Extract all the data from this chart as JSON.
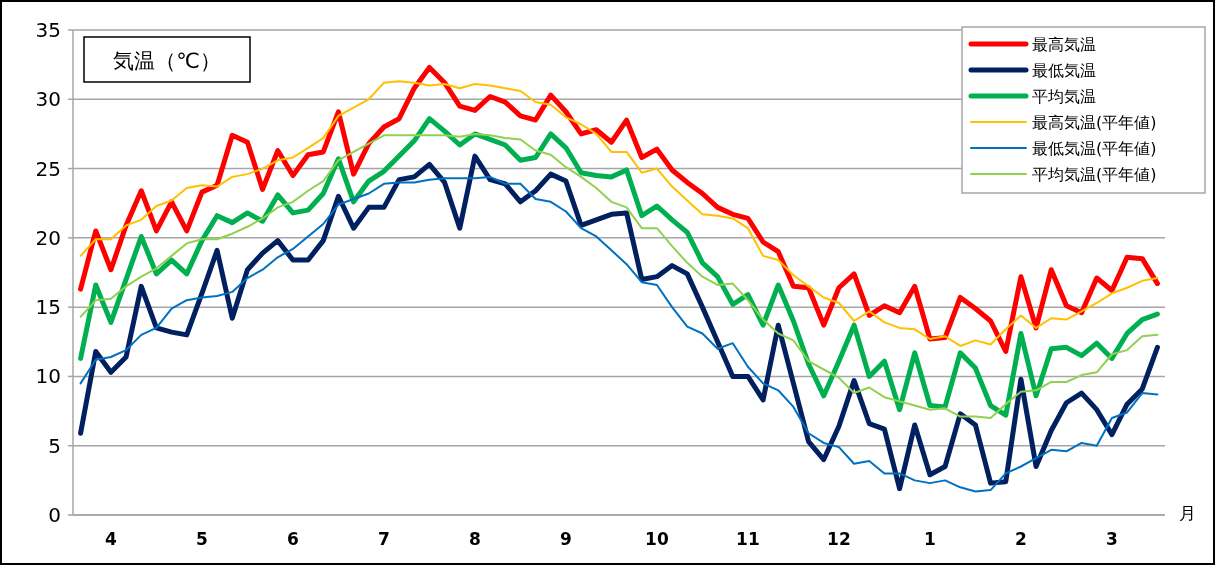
{
  "chart_data": {
    "type": "line",
    "title": "気温（℃）",
    "xlabel": "月",
    "categories": [
      null,
      null,
      "4",
      null,
      null,
      null,
      null,
      null,
      "5",
      null,
      null,
      null,
      null,
      null,
      "6",
      null,
      null,
      null,
      null,
      null,
      "7",
      null,
      null,
      null,
      null,
      null,
      "8",
      null,
      null,
      null,
      null,
      null,
      "9",
      null,
      null,
      null,
      null,
      null,
      "10",
      null,
      null,
      null,
      null,
      null,
      "11",
      null,
      null,
      null,
      null,
      null,
      "12",
      null,
      null,
      null,
      null,
      null,
      "1",
      null,
      null,
      null,
      null,
      null,
      "2",
      null,
      null,
      null,
      null,
      null,
      "3",
      null,
      null,
      null
    ],
    "ylim": [
      0,
      35
    ],
    "yticks": [
      0,
      5,
      10,
      15,
      20,
      25,
      30,
      35
    ],
    "grid": "y",
    "legend": "top right",
    "series": [
      {
        "name": "最高気温",
        "color": "#ff0000",
        "values": [
          16.3,
          20.5,
          17.7,
          20.9,
          23.4,
          20.5,
          22.6,
          20.5,
          23.3,
          23.8,
          27.4,
          26.9,
          23.5,
          26.3,
          24.5,
          26.0,
          26.2,
          29.1,
          24.6,
          26.8,
          28.0,
          28.6,
          30.8,
          32.3,
          31.2,
          29.5,
          29.2,
          30.2,
          29.8,
          28.8,
          28.5,
          30.3,
          29.1,
          27.5,
          27.8,
          26.9,
          28.5,
          25.8,
          26.4,
          24.9,
          24.0,
          23.2,
          22.2,
          21.7,
          21.4,
          19.7,
          19.0,
          16.5,
          16.4,
          13.7,
          16.4,
          17.4,
          14.4,
          15.1,
          14.6,
          16.5,
          12.7,
          12.8,
          15.7,
          14.9,
          14.0,
          11.8,
          17.2,
          13.5,
          17.7,
          15.1,
          14.6,
          17.1,
          16.2,
          18.6,
          18.5,
          16.7
        ]
      },
      {
        "name": "最低気温",
        "color": "#002060",
        "values": [
          5.9,
          11.8,
          10.3,
          11.4,
          16.5,
          13.5,
          13.2,
          13.0,
          16.0,
          19.1,
          14.2,
          17.7,
          18.9,
          19.8,
          18.4,
          18.4,
          19.8,
          23.0,
          20.7,
          22.2,
          22.2,
          24.2,
          24.4,
          25.3,
          24.0,
          20.7,
          25.9,
          24.2,
          23.9,
          22.6,
          23.4,
          24.6,
          24.1,
          20.9,
          21.3,
          21.7,
          21.8,
          17.0,
          17.2,
          18.0,
          17.4,
          15.0,
          12.5,
          10.0,
          10.0,
          8.3,
          13.7,
          9.5,
          5.3,
          4.0,
          6.4,
          9.7,
          6.6,
          6.2,
          1.9,
          6.5,
          2.9,
          3.5,
          7.3,
          6.5,
          2.3,
          2.4,
          9.8,
          3.5,
          6.1,
          8.1,
          8.8,
          7.6,
          5.8,
          8.0,
          9.1,
          12.1
        ]
      },
      {
        "name": "平均気温",
        "color": "#00b050",
        "values": [
          11.3,
          16.6,
          13.9,
          17.0,
          20.1,
          17.4,
          18.4,
          17.4,
          19.8,
          21.6,
          21.1,
          21.8,
          21.2,
          23.1,
          21.8,
          22.0,
          23.2,
          25.7,
          22.6,
          24.1,
          24.8,
          25.9,
          27.0,
          28.6,
          27.7,
          26.7,
          27.5,
          27.1,
          26.7,
          25.6,
          25.8,
          27.5,
          26.5,
          24.7,
          24.5,
          24.4,
          24.9,
          21.6,
          22.3,
          21.3,
          20.4,
          18.2,
          17.2,
          15.2,
          15.9,
          13.7,
          16.6,
          14.0,
          10.9,
          8.6,
          11.1,
          13.7,
          10.0,
          11.1,
          7.6,
          11.7,
          7.9,
          7.8,
          11.7,
          10.6,
          7.9,
          7.2,
          13.1,
          8.6,
          12.0,
          12.1,
          11.5,
          12.4,
          11.3,
          13.1,
          14.1,
          14.5
        ]
      },
      {
        "name": "最高気温(平年値)",
        "color": "#ffc000",
        "values": [
          18.7,
          19.9,
          19.9,
          20.9,
          21.3,
          22.3,
          22.7,
          23.6,
          23.8,
          23.7,
          24.4,
          24.6,
          25.0,
          25.6,
          25.8,
          26.5,
          27.2,
          28.8,
          29.4,
          30.0,
          31.2,
          31.3,
          31.2,
          31.0,
          31.1,
          30.8,
          31.1,
          31.0,
          30.8,
          30.6,
          29.8,
          29.6,
          28.7,
          28.2,
          27.5,
          26.2,
          26.2,
          24.7,
          25.0,
          23.7,
          22.7,
          21.7,
          21.6,
          21.4,
          20.7,
          18.7,
          18.4,
          17.3,
          16.5,
          15.7,
          15.3,
          14.0,
          14.7,
          13.9,
          13.5,
          13.4,
          12.7,
          12.9,
          12.2,
          12.6,
          12.3,
          13.4,
          14.4,
          13.5,
          14.2,
          14.1,
          14.7,
          15.3,
          16.0,
          16.4,
          16.9,
          17.1
        ]
      },
      {
        "name": "最低気温(平年値)",
        "color": "#0070c0",
        "values": [
          9.5,
          11.2,
          11.4,
          11.9,
          13.0,
          13.5,
          14.9,
          15.5,
          15.7,
          15.8,
          16.1,
          17.1,
          17.7,
          18.6,
          19.2,
          20.1,
          21.0,
          22.4,
          22.8,
          23.2,
          23.9,
          24.0,
          24.0,
          24.2,
          24.3,
          24.3,
          24.3,
          24.4,
          23.9,
          23.9,
          22.8,
          22.6,
          21.9,
          20.7,
          20.1,
          19.1,
          18.1,
          16.8,
          16.6,
          15.0,
          13.6,
          13.1,
          12.0,
          12.4,
          10.7,
          9.5,
          9.0,
          7.8,
          5.9,
          5.2,
          4.9,
          3.7,
          3.9,
          3.0,
          3.0,
          2.5,
          2.3,
          2.5,
          2.0,
          1.7,
          1.8,
          3.0,
          3.5,
          4.1,
          4.7,
          4.6,
          5.2,
          5.0,
          7.0,
          7.4,
          8.8,
          8.7
        ]
      },
      {
        "name": "平均気温(平年値)",
        "color": "#92d050",
        "values": [
          14.3,
          15.5,
          15.6,
          16.5,
          17.2,
          17.8,
          18.7,
          19.6,
          19.9,
          19.9,
          20.3,
          20.8,
          21.4,
          22.2,
          22.6,
          23.4,
          24.1,
          25.6,
          26.2,
          26.8,
          27.4,
          27.4,
          27.4,
          27.4,
          27.4,
          27.3,
          27.5,
          27.4,
          27.2,
          27.1,
          26.3,
          26.0,
          25.1,
          24.4,
          23.6,
          22.6,
          22.2,
          20.7,
          20.7,
          19.4,
          18.2,
          17.2,
          16.6,
          16.7,
          15.5,
          14.1,
          13.1,
          12.6,
          11.1,
          10.5,
          9.9,
          8.8,
          9.2,
          8.5,
          8.2,
          7.9,
          7.6,
          7.7,
          7.1,
          7.1,
          7.0,
          8.0,
          8.9,
          9.0,
          9.6,
          9.6,
          10.1,
          10.3,
          11.6,
          11.9,
          12.9,
          13.0
        ]
      }
    ]
  }
}
